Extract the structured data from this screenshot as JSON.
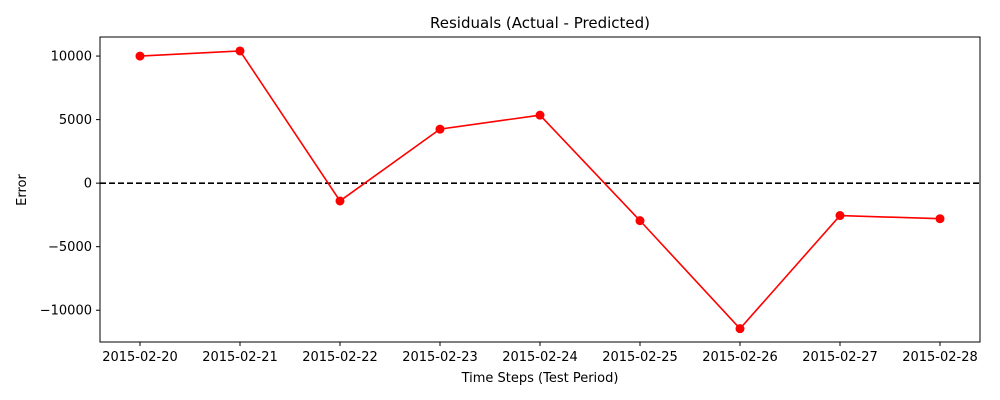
{
  "chart_data": {
    "type": "line",
    "title": "Residuals (Actual - Predicted)",
    "xlabel": "Time Steps (Test Period)",
    "ylabel": "Error",
    "x": [
      "2015-02-20",
      "2015-02-21",
      "2015-02-22",
      "2015-02-23",
      "2015-02-24",
      "2015-02-25",
      "2015-02-26",
      "2015-02-27",
      "2015-02-28"
    ],
    "series": [
      {
        "values": [
          10000,
          10400,
          -1400,
          4250,
          5350,
          -2950,
          -11450,
          -2550,
          -2800
        ],
        "color": "#ff0000",
        "marker": "circle"
      }
    ],
    "yticks": [
      10000,
      5000,
      0,
      -5000,
      -10000
    ],
    "ytick_labels": [
      "10000",
      "5000",
      "0",
      "−5000",
      "−10000"
    ],
    "ylim": [
      -12500,
      11500
    ],
    "reference_line": {
      "y": 0,
      "style": "dashed",
      "color": "#000000"
    },
    "grid": false,
    "legend": "none"
  }
}
